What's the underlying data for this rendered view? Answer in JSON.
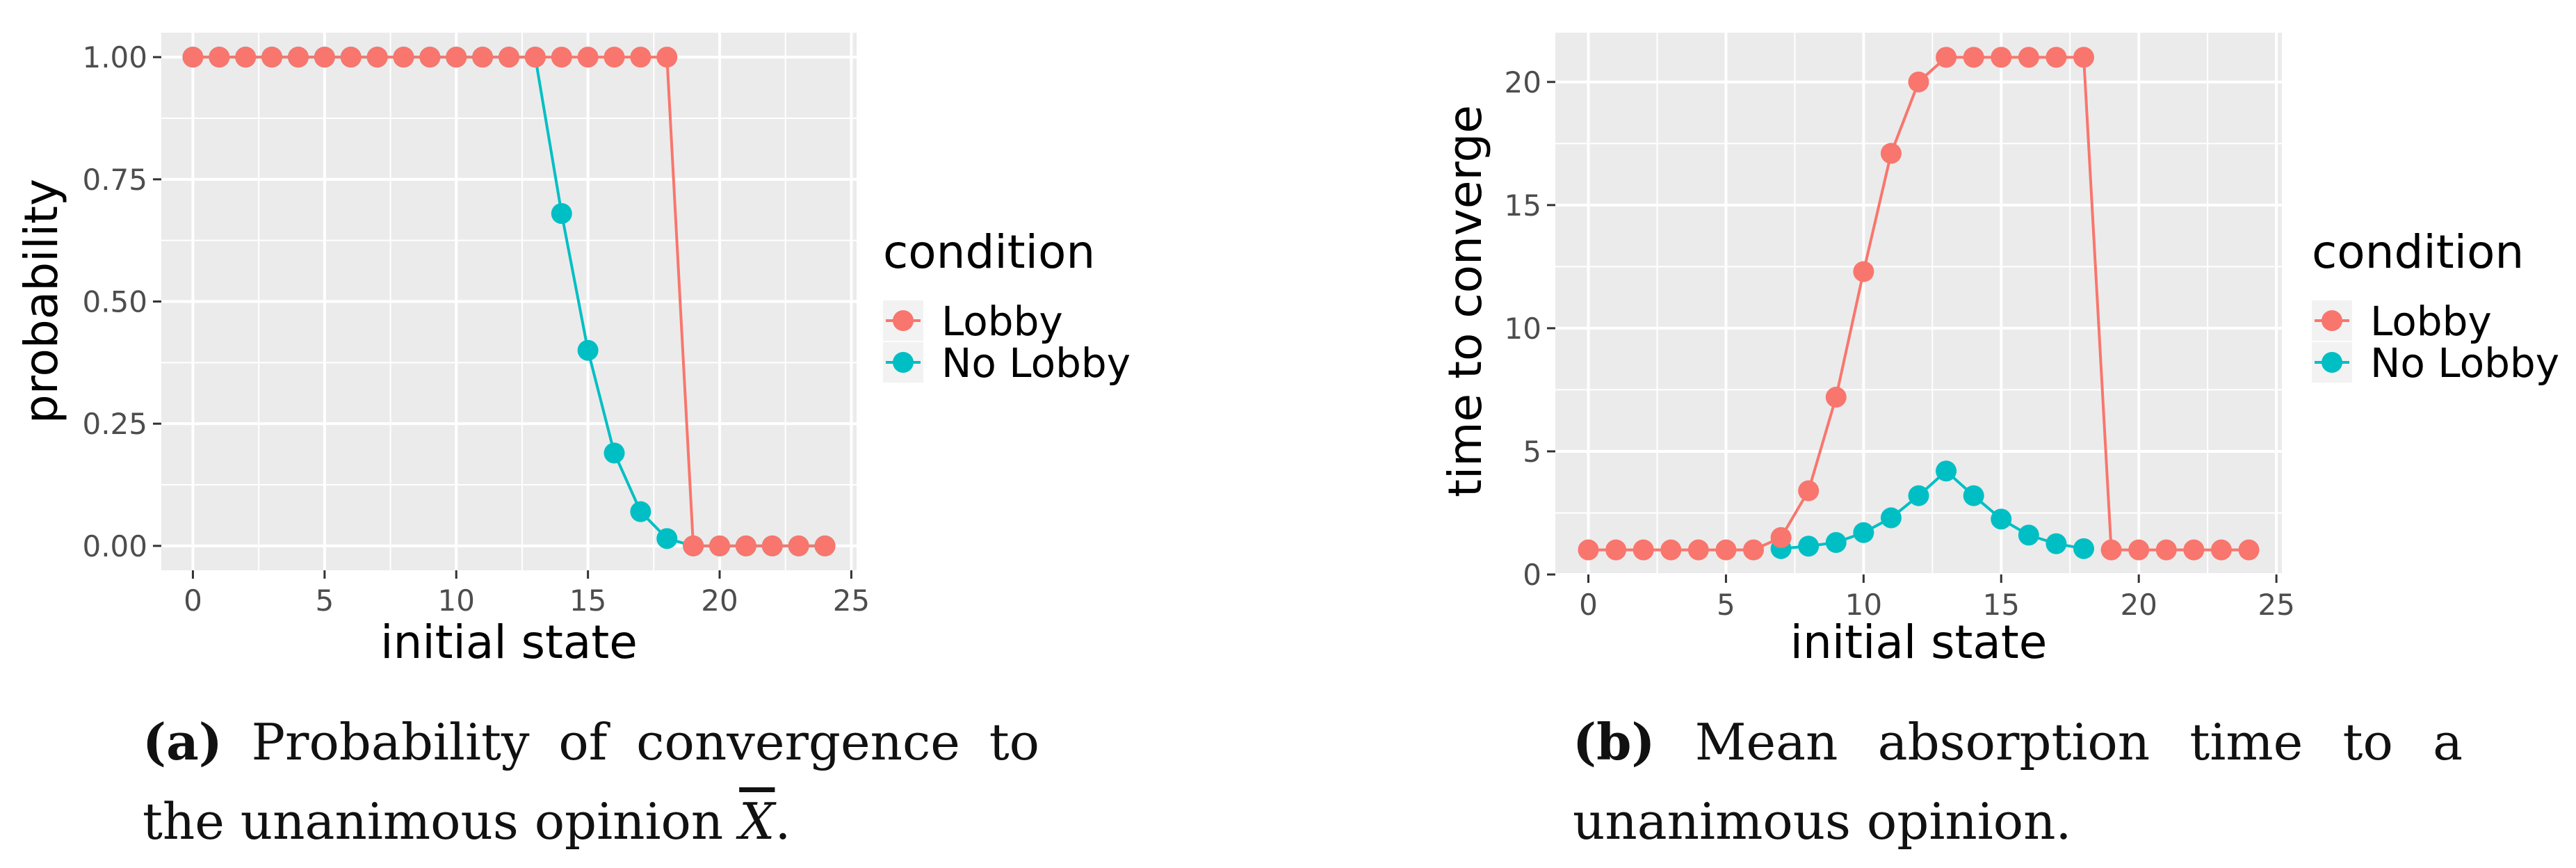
{
  "chart_data": [
    {
      "type": "line",
      "panel": "(a)",
      "xlabel": "initial state",
      "ylabel": "probability",
      "xlim": [
        -1.2,
        25.2
      ],
      "ylim": [
        -0.05,
        1.05
      ],
      "xticks": [
        0,
        5,
        10,
        15,
        20,
        25
      ],
      "xtick_labels": [
        "0",
        "5",
        "10",
        "15",
        "20",
        "25"
      ],
      "yticks": [
        0,
        0.25,
        0.5,
        0.75,
        1.0
      ],
      "ytick_labels": [
        "0.00",
        "0.25",
        "0.50",
        "0.75",
        "1.00"
      ],
      "grid": true,
      "legend": {
        "title": "condition",
        "placement": "right"
      },
      "series": [
        {
          "name": "Lobby",
          "color": "#F8766D",
          "x": [
            0,
            1,
            2,
            3,
            4,
            5,
            6,
            7,
            8,
            9,
            10,
            11,
            12,
            13,
            14,
            15,
            16,
            17,
            18,
            19,
            20,
            21,
            22,
            23,
            24
          ],
          "y": [
            1,
            1,
            1,
            1,
            1,
            1,
            1,
            1,
            1,
            1,
            1,
            1,
            1,
            1,
            1,
            1,
            1,
            1,
            1,
            0,
            0,
            0,
            0,
            0,
            0
          ]
        },
        {
          "name": "No Lobby",
          "color": "#00BFC4",
          "x": [
            0,
            1,
            2,
            3,
            4,
            5,
            6,
            7,
            8,
            9,
            10,
            11,
            12,
            13,
            14,
            15,
            16,
            17,
            18,
            19,
            20,
            21,
            22,
            23,
            24
          ],
          "y": [
            1,
            1,
            1,
            1,
            1,
            1,
            1,
            1,
            1,
            1,
            1,
            1,
            1,
            1,
            0.68,
            0.4,
            0.19,
            0.07,
            0.015,
            0,
            0,
            0,
            0,
            0,
            0
          ]
        }
      ]
    },
    {
      "type": "line",
      "panel": "(b)",
      "xlabel": "initial state",
      "ylabel": "time to converge",
      "xlim": [
        -1.2,
        25.2
      ],
      "ylim": [
        0,
        22
      ],
      "xticks": [
        0,
        5,
        10,
        15,
        20,
        25
      ],
      "xtick_labels": [
        "0",
        "5",
        "10",
        "15",
        "20",
        "25"
      ],
      "yticks": [
        0,
        5,
        10,
        15,
        20
      ],
      "ytick_labels": [
        "0",
        "5",
        "10",
        "15",
        "20"
      ],
      "grid": true,
      "legend": {
        "title": "condition",
        "placement": "right"
      },
      "series": [
        {
          "name": "Lobby",
          "color": "#F8766D",
          "x": [
            0,
            1,
            2,
            3,
            4,
            5,
            6,
            7,
            8,
            9,
            10,
            11,
            12,
            13,
            14,
            15,
            16,
            17,
            18,
            19,
            20,
            21,
            22,
            23,
            24
          ],
          "y": [
            1,
            1,
            1,
            1,
            1,
            1,
            1,
            1.5,
            3.4,
            7.2,
            12.3,
            17.1,
            20.0,
            21,
            21,
            21,
            21,
            21,
            21,
            1,
            1,
            1,
            1,
            1,
            1
          ]
        },
        {
          "name": "No Lobby",
          "color": "#00BFC4",
          "x": [
            7,
            8,
            9,
            10,
            11,
            12,
            13,
            14,
            15,
            16,
            17,
            18
          ],
          "y": [
            1.05,
            1.15,
            1.3,
            1.7,
            2.3,
            3.2,
            4.2,
            3.2,
            2.25,
            1.6,
            1.25,
            1.05
          ]
        }
      ]
    }
  ],
  "captions": {
    "a": {
      "label": "(a)",
      "text_1": " Probability of convergence to the unanimous opinion ",
      "symbol": "X",
      "text_2": "."
    },
    "b": {
      "label": "(b)",
      "text": " Mean absorption time to a unanimous opinion."
    }
  }
}
